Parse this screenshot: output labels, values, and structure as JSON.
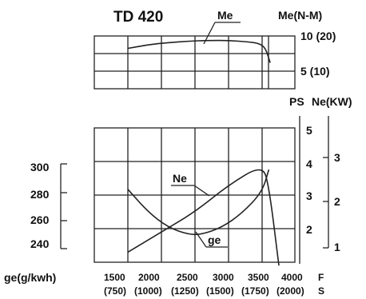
{
  "chart_data": [
    {
      "type": "line",
      "title": "TD 420",
      "x": [
        1500,
        1800,
        2100,
        2400,
        2700,
        3000,
        3300,
        3450,
        3550,
        3620
      ],
      "x_ticks": [
        1500,
        2000,
        2500,
        3000,
        3500,
        4000
      ],
      "series": [
        {
          "name": "Me",
          "values": [
            8.5,
            9.0,
            9.3,
            9.5,
            9.6,
            9.6,
            9.4,
            9.2,
            8.6,
            6.5
          ]
        }
      ],
      "ylabel": "Me(N-M)",
      "y_ticks": [
        "5 (10)",
        "10 (20)"
      ],
      "ylim": [
        4,
        11
      ],
      "xlim": [
        1000,
        4300
      ],
      "grid": true
    },
    {
      "type": "line",
      "x_ticks": [
        1500,
        2000,
        2500,
        3000,
        3500,
        4000
      ],
      "x_tick_labels": [
        "1500",
        "2000",
        "2500",
        "3000",
        "3500",
        "4000"
      ],
      "x_tick_sublabels": [
        "(750)",
        "(1000)",
        "(1250)",
        "(1500)",
        "(1750)",
        "(2000)"
      ],
      "x_unit_labels": [
        "F",
        "S"
      ],
      "series": [
        {
          "name": "Ne",
          "axis": "right_ps",
          "x": [
            1500,
            2000,
            2500,
            3000,
            3500,
            3600,
            3750
          ],
          "values": [
            1.3,
            1.9,
            2.5,
            3.3,
            3.9,
            3.3,
            0.9
          ]
        },
        {
          "name": "ge",
          "axis": "left",
          "x": [
            1500,
            1800,
            2100,
            2400,
            2600,
            2900,
            3200,
            3500,
            3600
          ],
          "values": [
            282,
            266,
            255,
            250,
            250,
            255,
            265,
            280,
            296
          ]
        }
      ],
      "left_axis": {
        "label": "ge(g/kwh)",
        "ticks": [
          240,
          260,
          280,
          300
        ],
        "ylim": [
          230,
          315
        ]
      },
      "right_axis_ps": {
        "label": "PS",
        "ticks": [
          2,
          3,
          4,
          5
        ]
      },
      "right_axis_kw": {
        "label": "Ne(KW)",
        "ticks": [
          1,
          2,
          3
        ]
      },
      "grid": true
    }
  ]
}
